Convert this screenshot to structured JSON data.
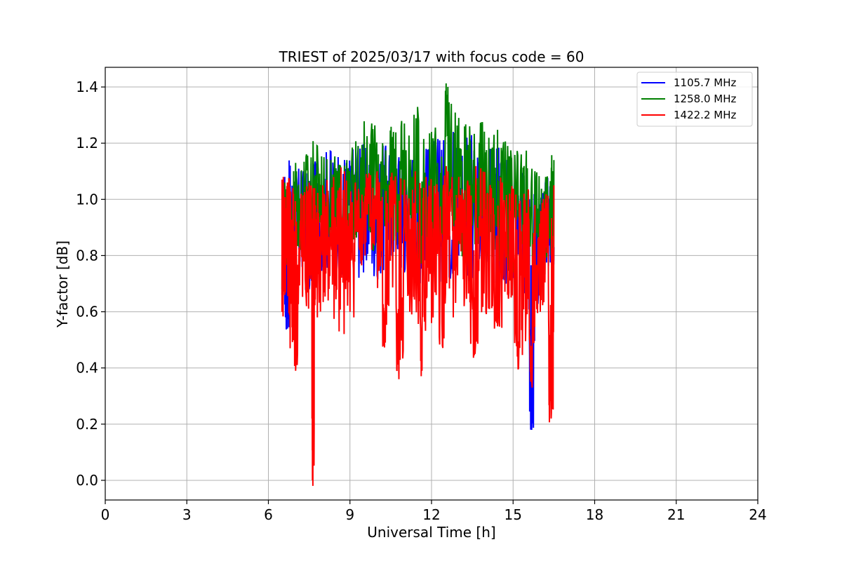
{
  "chart_data": {
    "type": "line",
    "title": "TRIEST of 2025/03/17 with focus code = 60",
    "xlabel": "Universal Time [h]",
    "ylabel": "Y-factor [dB]",
    "xlim": [
      0,
      24
    ],
    "ylim": [
      -0.07,
      1.47
    ],
    "xticks": [
      0,
      3,
      6,
      9,
      12,
      15,
      18,
      21,
      24
    ],
    "yticks": [
      0.0,
      0.2,
      0.4,
      0.6,
      0.8,
      1.0,
      1.2,
      1.4
    ],
    "xtick_labels": [
      "0",
      "3",
      "6",
      "9",
      "12",
      "15",
      "18",
      "21",
      "24"
    ],
    "ytick_labels": [
      "0.0",
      "0.2",
      "0.4",
      "0.6",
      "0.8",
      "1.0",
      "1.2",
      "1.4"
    ],
    "grid": true,
    "legend_position": "top-right",
    "series": [
      {
        "name": "1105.7 MHz",
        "color": "#0000ff",
        "x": [
          6.5,
          6.6,
          6.7,
          6.8,
          7.0,
          7.2,
          7.5,
          7.7,
          8.0,
          8.3,
          8.5,
          8.8,
          9.0,
          9.3,
          9.5,
          9.8,
          10.0,
          10.3,
          10.5,
          10.8,
          11.0,
          11.3,
          11.5,
          11.8,
          12.0,
          12.3,
          12.5,
          12.8,
          13.0,
          13.3,
          13.5,
          13.8,
          14.0,
          14.3,
          14.5,
          14.8,
          15.0,
          15.3,
          15.5,
          15.6,
          15.65,
          15.8,
          16.0,
          16.2,
          16.4,
          16.5
        ],
        "y": [
          0.66,
          1.08,
          0.54,
          1.12,
          0.73,
          1.1,
          0.68,
          1.12,
          0.76,
          1.17,
          0.72,
          1.14,
          0.82,
          1.19,
          0.74,
          1.17,
          0.73,
          1.18,
          0.8,
          1.15,
          0.74,
          1.14,
          0.72,
          1.18,
          0.76,
          1.21,
          0.72,
          1.24,
          0.8,
          1.22,
          0.72,
          1.17,
          0.78,
          1.18,
          0.7,
          1.13,
          0.72,
          1.1,
          0.6,
          1.0,
          0.18,
          1.09,
          0.64,
          1.07,
          0.78,
          0.83
        ]
      },
      {
        "name": "1258.0 MHz",
        "color": "#008000",
        "x": [
          6.5,
          6.6,
          6.8,
          7.0,
          7.2,
          7.4,
          7.6,
          7.8,
          8.0,
          8.3,
          8.5,
          8.8,
          9.0,
          9.3,
          9.5,
          9.8,
          10.0,
          10.2,
          10.4,
          10.6,
          10.8,
          11.0,
          11.3,
          11.5,
          11.8,
          12.0,
          12.2,
          12.5,
          12.6,
          12.8,
          13.0,
          13.2,
          13.4,
          13.6,
          13.8,
          14.0,
          14.3,
          14.5,
          14.8,
          15.0,
          15.3,
          15.5,
          15.8,
          16.0,
          16.2,
          16.4,
          16.5
        ],
        "y": [
          0.68,
          1.06,
          0.78,
          1.13,
          0.82,
          1.16,
          0.88,
          1.19,
          0.84,
          1.14,
          0.9,
          1.12,
          0.86,
          1.19,
          0.9,
          1.27,
          0.82,
          1.2,
          0.92,
          1.24,
          0.84,
          1.27,
          0.8,
          1.31,
          0.78,
          1.24,
          0.84,
          1.2,
          1.4,
          0.86,
          1.29,
          0.8,
          1.26,
          0.84,
          1.27,
          0.76,
          1.23,
          0.78,
          1.19,
          0.74,
          1.16,
          0.72,
          1.1,
          0.74,
          1.08,
          0.8,
          1.14
        ]
      },
      {
        "name": "1422.2 MHz",
        "color": "#ff0000",
        "x": [
          6.5,
          6.55,
          6.6,
          6.7,
          6.8,
          6.9,
          7.0,
          7.2,
          7.4,
          7.5,
          7.6,
          7.62,
          7.7,
          7.8,
          8.0,
          8.2,
          8.4,
          8.6,
          8.8,
          9.0,
          9.2,
          9.4,
          9.6,
          9.8,
          10.0,
          10.2,
          10.3,
          10.5,
          10.7,
          10.8,
          11.0,
          11.2,
          11.4,
          11.6,
          11.65,
          11.8,
          12.0,
          12.2,
          12.4,
          12.6,
          12.8,
          13.0,
          13.2,
          13.4,
          13.6,
          13.8,
          14.0,
          14.2,
          14.4,
          14.6,
          14.8,
          15.0,
          15.2,
          15.4,
          15.6,
          15.7,
          15.8,
          16.0,
          16.2,
          16.3,
          16.4,
          16.5
        ],
        "y": [
          0.6,
          1.08,
          0.66,
          1.06,
          0.47,
          1.04,
          0.39,
          1.02,
          0.62,
          1.06,
          0.7,
          0.0,
          1.04,
          0.58,
          1.05,
          0.64,
          1.08,
          0.53,
          1.1,
          0.6,
          1.06,
          0.78,
          1.09,
          0.82,
          1.1,
          0.62,
          0.49,
          1.08,
          0.62,
          0.36,
          1.07,
          0.6,
          1.1,
          0.54,
          0.39,
          1.08,
          0.56,
          1.05,
          0.48,
          1.1,
          0.58,
          1.08,
          0.62,
          1.05,
          0.45,
          1.1,
          0.6,
          1.04,
          0.56,
          1.06,
          0.66,
          1.03,
          0.4,
          1.02,
          0.5,
          0.33,
          0.98,
          0.6,
          1.0,
          0.7,
          0.22,
          1.05
        ]
      }
    ]
  }
}
